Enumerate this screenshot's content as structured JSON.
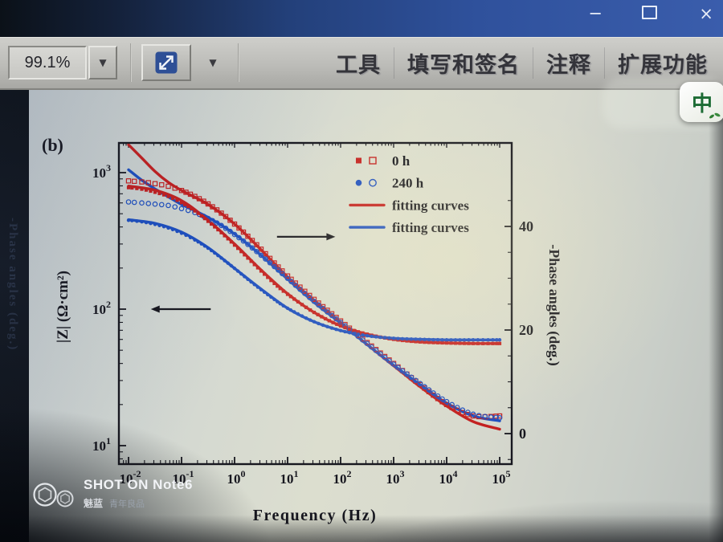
{
  "window": {
    "icons": {
      "minimize": "─",
      "close": "×",
      "caret_down": "▼"
    }
  },
  "toolbar": {
    "zoom_value": "99.1%",
    "menus": [
      {
        "label": "工具"
      },
      {
        "label": "填写和签名"
      },
      {
        "label": "注释"
      },
      {
        "label": "扩展功能"
      }
    ],
    "ime_badge": "中"
  },
  "ghost_text": "-Phase angles (deg.)",
  "watermark": {
    "shot_on": "SHOT ON Note6",
    "brand": "魅蓝",
    "slogan": "青年良品"
  },
  "chart_data": {
    "type": "line",
    "panel_label": "(b)",
    "xlabel": "Frequency (Hz)",
    "ylabel_left": "|Z| (Ω·cm²)",
    "ylabel_right": "-Phase angles (deg.)",
    "x_log": true,
    "xlim_exp": [
      -2,
      5
    ],
    "ylim_left_exp": [
      1,
      3
    ],
    "ylim_right": [
      0,
      45
    ],
    "xticks_exp": [
      -2,
      -1,
      0,
      1,
      2,
      3,
      4,
      5
    ],
    "yticks_left_exp": [
      1,
      2,
      3
    ],
    "yticks_right": [
      0,
      20,
      40
    ],
    "grid": false,
    "legend_position": "upper center-right inside",
    "colors": {
      "red": "#c32020",
      "blue": "#1e4fc0",
      "axis": "#17171f"
    },
    "legend": [
      {
        "label": "0 h",
        "color": "red",
        "marker": "square"
      },
      {
        "label": "240 h",
        "color": "blue",
        "marker": "circle"
      },
      {
        "label": "fitting curves",
        "color": "red",
        "marker": "line"
      },
      {
        "label": "fitting curves",
        "color": "blue",
        "marker": "line"
      }
    ],
    "annotations": {
      "right_axis_arrow": {
        "from": [
          0.8,
          38
        ],
        "to": [
          1.9,
          38
        ],
        "axis": "right"
      },
      "left_axis_arrow": {
        "from": [
          -0.45,
          100
        ],
        "to": [
          -1.58,
          100
        ],
        "axis": "left"
      }
    },
    "series": [
      {
        "name": "fit 0 h impedance",
        "axis": "left",
        "color": "red",
        "marker": "none",
        "line": true,
        "width": 3.4,
        "x": [
          -2,
          -1.75,
          -1.5,
          -1.25,
          -1,
          -0.5,
          0,
          0.5,
          1,
          1.5,
          2,
          2.5,
          3,
          3.5,
          4,
          4.5,
          5
        ],
        "y": [
          1600,
          1280,
          1020,
          850,
          740,
          585,
          420,
          272,
          172,
          116,
          80,
          55,
          38.5,
          27,
          19.5,
          15,
          13.2
        ]
      },
      {
        "name": "fit 240 h impedance",
        "axis": "left",
        "color": "blue",
        "marker": "none",
        "line": true,
        "width": 3.4,
        "x": [
          -2,
          -1.75,
          -1.5,
          -1.25,
          -1,
          -0.5,
          0,
          0.5,
          1,
          1.5,
          2,
          2.5,
          3,
          3.5,
          4,
          4.5,
          5
        ],
        "y": [
          1050,
          880,
          760,
          665,
          585,
          470,
          355,
          248,
          166,
          112,
          79,
          55,
          38.8,
          28,
          20.5,
          16.5,
          15.2
        ]
      },
      {
        "name": "fit 0 h phase",
        "axis": "right",
        "color": "red",
        "marker": "none",
        "line": true,
        "width": 3.4,
        "x": [
          -2,
          -1.5,
          -1,
          -0.5,
          0,
          0.5,
          1,
          1.5,
          2,
          2.5,
          3,
          3.5,
          4,
          4.5,
          5
        ],
        "y": [
          47.8,
          47,
          45,
          41.2,
          36.6,
          31.6,
          27,
          23.4,
          20.8,
          19.2,
          18.2,
          17.7,
          17.5,
          17.4,
          17.4
        ]
      },
      {
        "name": "fit 240 h phase",
        "axis": "right",
        "color": "blue",
        "marker": "none",
        "line": true,
        "width": 3.4,
        "x": [
          -2,
          -1.5,
          -1,
          -0.5,
          0,
          0.5,
          1,
          1.5,
          2,
          2.5,
          3,
          3.5,
          4,
          4.5,
          5
        ],
        "y": [
          41.3,
          40.6,
          38.9,
          35.9,
          31.9,
          27.9,
          24.2,
          21.6,
          19.9,
          18.9,
          18.4,
          18.2,
          18.1,
          18.1,
          18.1
        ]
      },
      {
        "name": "0 h impedance",
        "axis": "left",
        "color": "red",
        "marker": "open-square",
        "line": false,
        "spacing": 7,
        "x": [
          -2,
          -1.75,
          -1.5,
          -1.25,
          -1,
          -0.75,
          -0.5,
          -0.25,
          0,
          0.25,
          0.5,
          0.75,
          1,
          1.5,
          2,
          2.5,
          3,
          3.5,
          4,
          4.5,
          5
        ],
        "y": [
          870,
          855,
          830,
          795,
          740,
          670,
          590,
          505,
          420,
          342,
          275,
          218,
          175,
          118,
          82,
          57,
          40,
          28,
          20,
          16.5,
          16.5
        ]
      },
      {
        "name": "240 h impedance",
        "axis": "left",
        "color": "blue",
        "marker": "open-circle",
        "line": false,
        "spacing": 7,
        "x": [
          -2,
          -1.75,
          -1.5,
          -1.25,
          -1,
          -0.75,
          -0.5,
          -0.25,
          0,
          0.25,
          0.5,
          0.75,
          1,
          1.5,
          2,
          2.5,
          3,
          3.5,
          4,
          4.5,
          5
        ],
        "y": [
          610,
          600,
          588,
          575,
          545,
          510,
          462,
          410,
          352,
          298,
          248,
          205,
          168,
          114,
          80,
          56,
          39.5,
          28.5,
          21,
          17,
          16
        ]
      },
      {
        "name": "0 h phase",
        "axis": "right",
        "color": "red",
        "marker": "filled-square",
        "line": false,
        "spacing": 5.5,
        "x": [
          -2,
          -1.75,
          -1.5,
          -1.25,
          -1,
          -0.75,
          -0.5,
          -0.25,
          0,
          0.25,
          0.5,
          0.75,
          1,
          1.5,
          2,
          2.5,
          3,
          3.5,
          4,
          4.5,
          5
        ],
        "y": [
          47.5,
          47.2,
          46.6,
          45.8,
          44.6,
          43,
          41,
          38.8,
          36.4,
          33.9,
          31.4,
          29,
          26.9,
          23.4,
          20.8,
          19.2,
          18.2,
          17.7,
          17.5,
          17.4,
          17.4
        ]
      },
      {
        "name": "240 h phase",
        "axis": "right",
        "color": "blue",
        "marker": "filled-circle",
        "line": false,
        "spacing": 5.5,
        "x": [
          -2,
          -1.75,
          -1.5,
          -1.25,
          -1,
          -0.75,
          -0.5,
          -0.25,
          0,
          0.25,
          0.5,
          0.75,
          1,
          1.5,
          2,
          2.5,
          3,
          3.5,
          4,
          4.5,
          5
        ],
        "y": [
          41.2,
          40.9,
          40.4,
          39.7,
          38.7,
          37.4,
          35.8,
          33.9,
          31.9,
          29.8,
          27.8,
          25.9,
          24.2,
          21.6,
          19.9,
          18.9,
          18.4,
          18.2,
          18.1,
          18.1,
          18.1
        ]
      }
    ]
  }
}
